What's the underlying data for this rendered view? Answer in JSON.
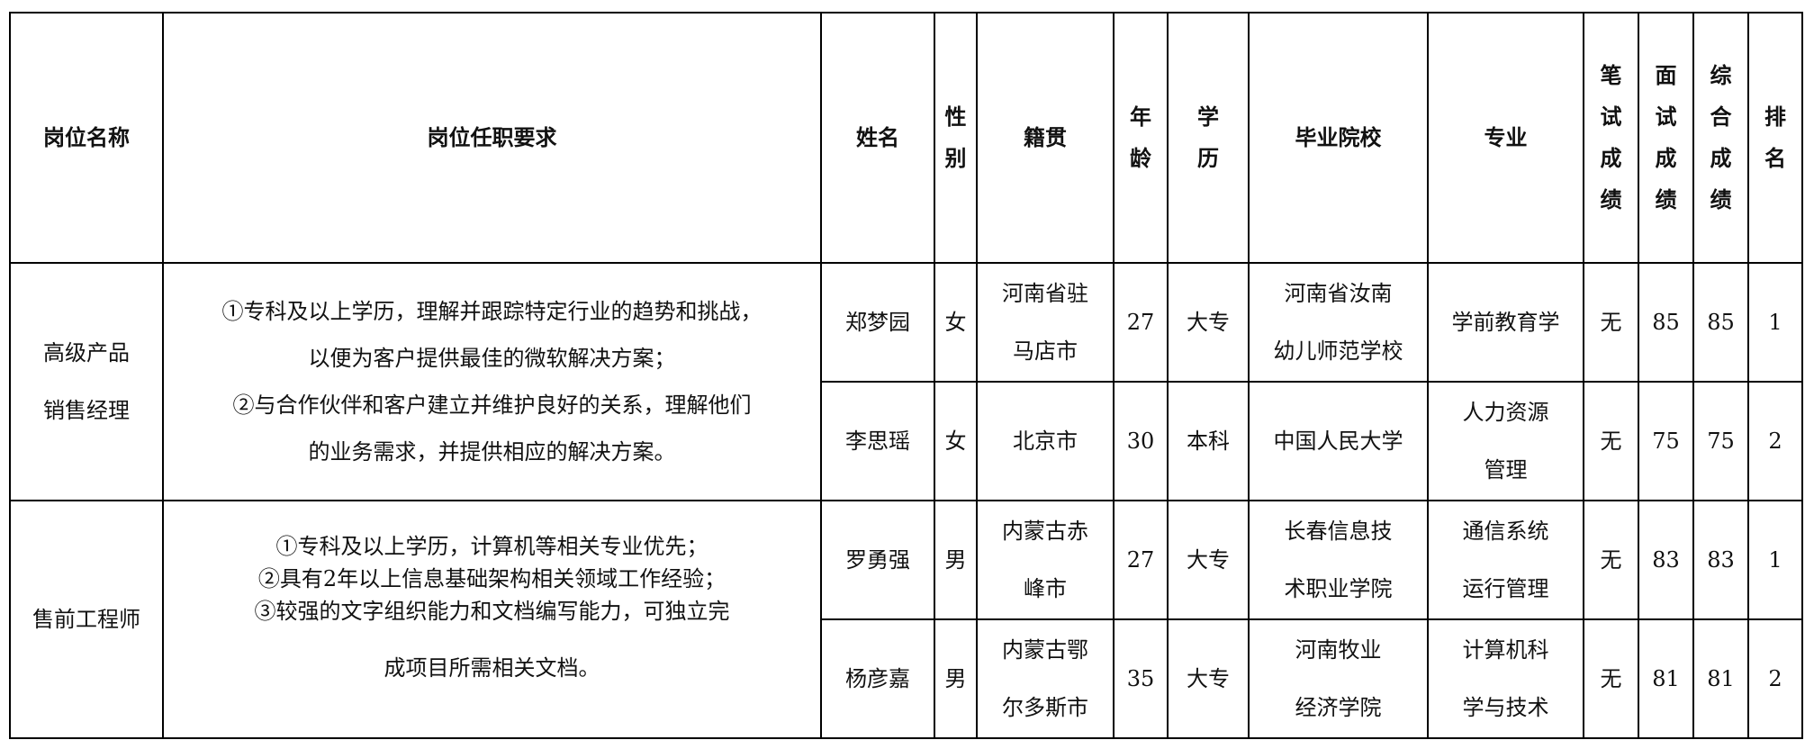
{
  "headers": {
    "position": "岗位名称",
    "requirements": "岗位任职要求",
    "name": "姓名",
    "gender": [
      "性",
      "别"
    ],
    "native_place": "籍贯",
    "age": [
      "年",
      "龄"
    ],
    "education": [
      "学",
      "历"
    ],
    "school": "毕业院校",
    "major": "专业",
    "written": [
      "笔",
      "试",
      "成",
      "绩"
    ],
    "interview": [
      "面",
      "试",
      "成",
      "绩"
    ],
    "total": [
      "综",
      "合",
      "成",
      "绩"
    ],
    "rank": [
      "排",
      "名"
    ]
  },
  "groups": [
    {
      "position": [
        "高级产品",
        "销售经理"
      ],
      "requirements": [
        "①专科及以上学历，理解并跟踪特定行业的趋势和挑战，",
        "以便为客户提供最佳的微软解决方案；",
        "②与合作伙伴和客户建立并维护良好的关系，理解他们",
        "的业务需求，并提供相应的解决方案。"
      ],
      "rows": [
        {
          "name": "郑梦园",
          "gender": "女",
          "native_place": [
            "河南省驻",
            "马店市"
          ],
          "age": "27",
          "education": "大专",
          "school": [
            "河南省汝南",
            "幼儿师范学校"
          ],
          "major": [
            "学前教育学"
          ],
          "written": "无",
          "interview": "85",
          "total": "85",
          "rank": "1"
        },
        {
          "name": "李思瑶",
          "gender": "女",
          "native_place": [
            "北京市"
          ],
          "age": "30",
          "education": "本科",
          "school": [
            "中国人民大学"
          ],
          "major": [
            "人力资源",
            "管理"
          ],
          "written": "无",
          "interview": "75",
          "total": "75",
          "rank": "2"
        }
      ]
    },
    {
      "position": [
        "售前工程师"
      ],
      "requirements": [
        "①专科及以上学历，计算机等相关专业优先；",
        "②具有2年以上信息基础架构相关领域工作经验；",
        "③较强的文字组织能力和文档编写能力，可独立完",
        "成项目所需相关文档。"
      ],
      "rows": [
        {
          "name": "罗勇强",
          "gender": "男",
          "native_place": [
            "内蒙古赤",
            "峰市"
          ],
          "age": "27",
          "education": "大专",
          "school": [
            "长春信息技",
            "术职业学院"
          ],
          "major": [
            "通信系统",
            "运行管理"
          ],
          "written": "无",
          "interview": "83",
          "total": "83",
          "rank": "1"
        },
        {
          "name": "杨彦嘉",
          "gender": "男",
          "native_place": [
            "内蒙古鄂",
            "尔多斯市"
          ],
          "age": "35",
          "education": "大专",
          "school": [
            "河南牧业",
            "经济学院"
          ],
          "major": [
            "计算机科",
            "学与技术"
          ],
          "written": "无",
          "interview": "81",
          "total": "81",
          "rank": "2"
        }
      ]
    }
  ]
}
